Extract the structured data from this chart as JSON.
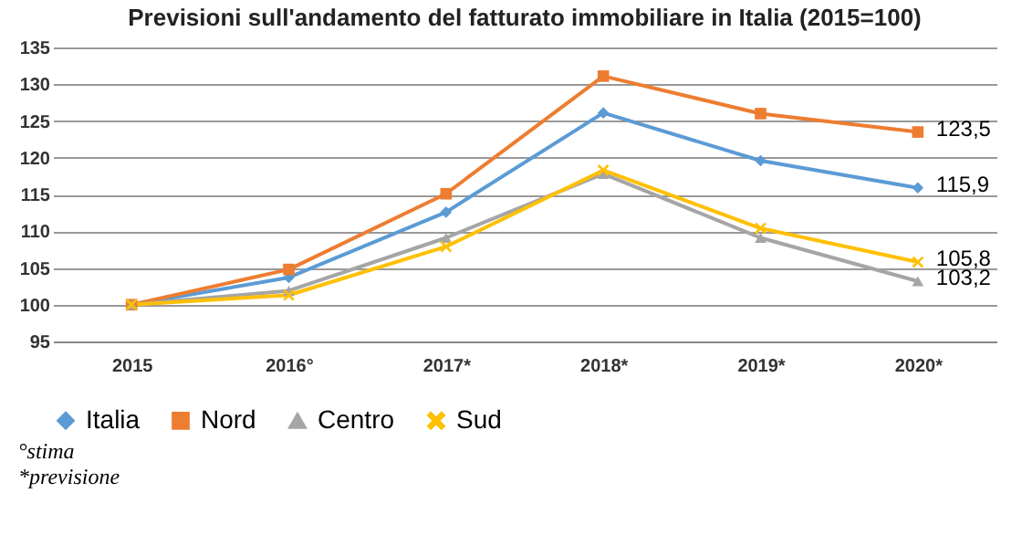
{
  "chart_data": {
    "type": "line",
    "title": "Previsioni sull'andamento del fatturato immobiliare in Italia (2015=100)",
    "categories": [
      "2015",
      "2016°",
      "2017*",
      "2018*",
      "2019*",
      "2020*"
    ],
    "series": [
      {
        "name": "Italia",
        "color": "#5b9bd5",
        "marker": "diamond",
        "values": [
          100,
          103.7,
          112.6,
          126.1,
          119.6,
          115.9
        ],
        "value_labels": [
          null,
          null,
          null,
          null,
          null,
          "115,9"
        ]
      },
      {
        "name": "Nord",
        "color": "#ed7d31",
        "marker": "square",
        "values": [
          100,
          104.8,
          115.1,
          131.1,
          126.0,
          123.5
        ],
        "value_labels": [
          null,
          null,
          null,
          null,
          null,
          "123,5"
        ]
      },
      {
        "name": "Centro",
        "color": "#a5a5a5",
        "marker": "triangle",
        "values": [
          100,
          101.9,
          109.1,
          117.8,
          109.1,
          103.2
        ],
        "value_labels": [
          null,
          null,
          null,
          null,
          null,
          "103,2"
        ]
      },
      {
        "name": "Sud",
        "color": "#ffc000",
        "marker": "cross",
        "values": [
          100,
          101.3,
          107.9,
          118.3,
          110.4,
          105.8
        ],
        "value_labels": [
          null,
          null,
          null,
          null,
          null,
          "105,8"
        ]
      }
    ],
    "ylim": [
      95,
      135
    ],
    "yticks": [
      95,
      100,
      105,
      110,
      115,
      120,
      125,
      130,
      135
    ],
    "grid": "y",
    "legend": "bottom",
    "annotations": [
      "°stima",
      "*previsione"
    ]
  }
}
